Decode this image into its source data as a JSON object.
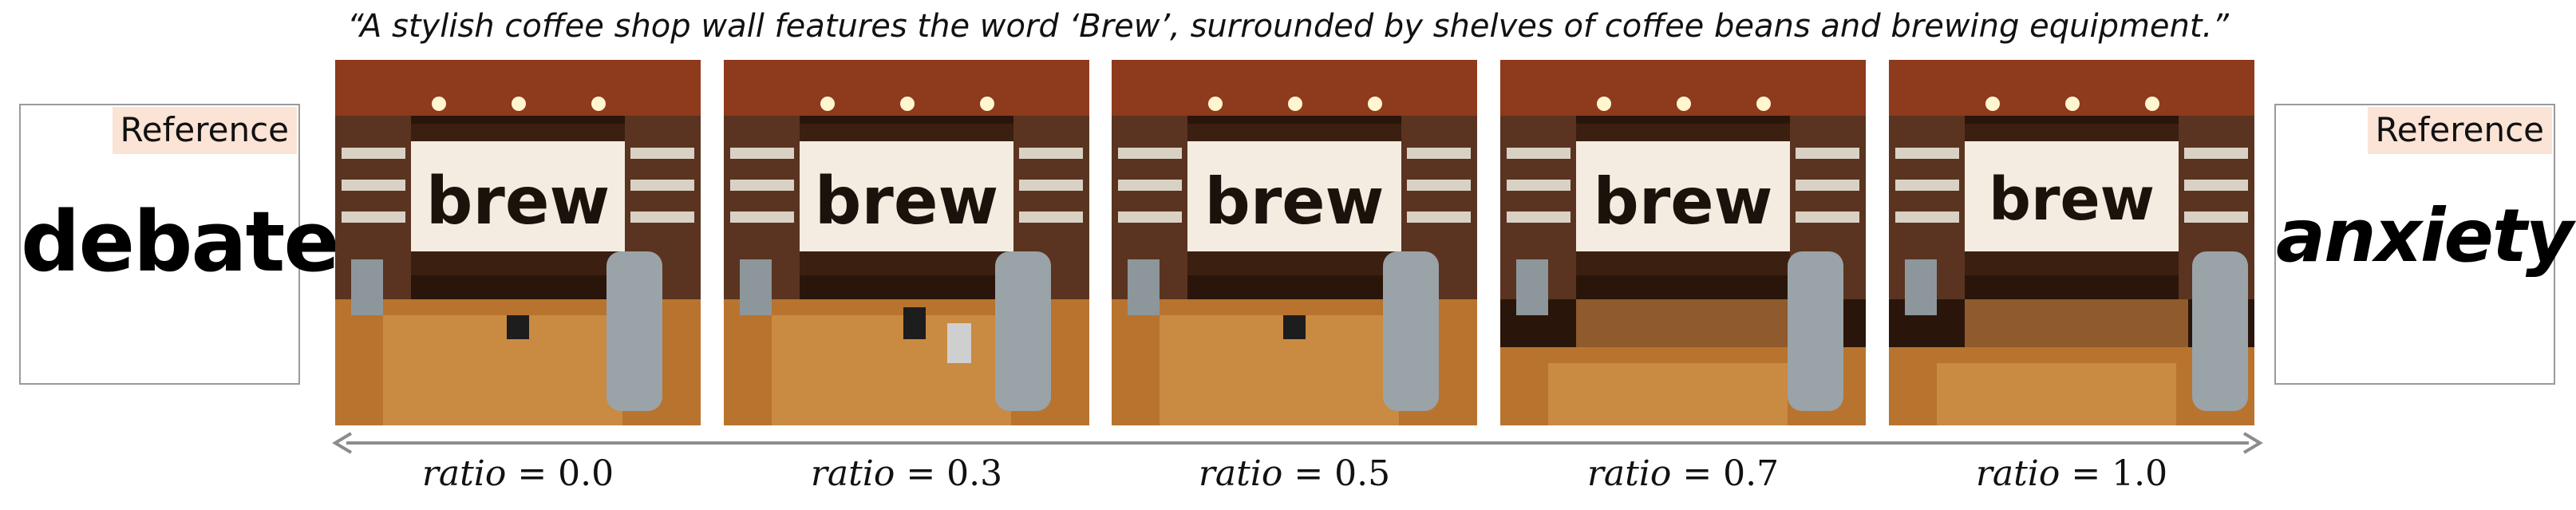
{
  "caption": "“A stylish coffee shop wall features the word ‘Brew’, surrounded by shelves of coffee beans and brewing equipment.”",
  "reference_left": {
    "badge": "Reference",
    "word": "debate"
  },
  "reference_right": {
    "badge": "Reference",
    "word": "anxiety"
  },
  "panels": [
    {
      "sign_text": "brew",
      "ratio_var": "ratio",
      "ratio_eq": " = 0.0"
    },
    {
      "sign_text": "brew",
      "ratio_var": "ratio",
      "ratio_eq": " = 0.3"
    },
    {
      "sign_text": "brew",
      "ratio_var": "ratio",
      "ratio_eq": " = 0.5"
    },
    {
      "sign_text": "brew",
      "ratio_var": "ratio",
      "ratio_eq": " = 0.7"
    },
    {
      "sign_text": "brew",
      "ratio_var": "ratio",
      "ratio_eq": " = 1.0"
    }
  ],
  "colors": {
    "badge": "#fbe3d6",
    "arrow": "#8c8c8c",
    "wood": "#b8742e",
    "wall": "#f4ece0"
  }
}
